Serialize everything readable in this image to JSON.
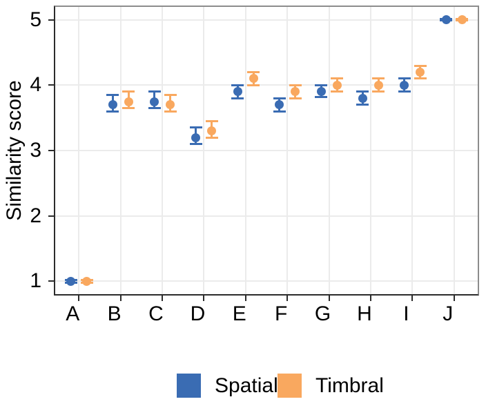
{
  "chart_data": {
    "type": "scatter",
    "title": "",
    "xlabel": "",
    "ylabel": "Similarity score",
    "categories": [
      "A",
      "B",
      "C",
      "D",
      "E",
      "F",
      "G",
      "H",
      "I",
      "J"
    ],
    "y_ticks": [
      "1",
      "2",
      "3",
      "4",
      "5"
    ],
    "ylim": [
      0.78,
      5.22
    ],
    "grid": "major-only",
    "legend_position": "bottom",
    "point_style": "dot-with-errorbar",
    "series": [
      {
        "name": "Spatial",
        "color": "#3A6CB3",
        "values": [
          1.0,
          3.7,
          3.75,
          3.2,
          3.9,
          3.7,
          3.9,
          3.8,
          4.0,
          5.0
        ],
        "lower": [
          0.98,
          3.6,
          3.65,
          3.1,
          3.8,
          3.6,
          3.82,
          3.7,
          3.9,
          4.99
        ],
        "upper": [
          1.02,
          3.85,
          3.9,
          3.35,
          4.0,
          3.8,
          4.0,
          3.9,
          4.1,
          5.01
        ]
      },
      {
        "name": "Timbral",
        "color": "#F9A85F",
        "values": [
          1.0,
          3.75,
          3.7,
          3.3,
          4.1,
          3.9,
          4.0,
          4.0,
          4.2,
          5.0
        ],
        "lower": [
          0.98,
          3.65,
          3.6,
          3.2,
          4.0,
          3.8,
          3.9,
          3.9,
          4.1,
          4.99
        ],
        "upper": [
          1.02,
          3.9,
          3.85,
          3.45,
          4.2,
          4.0,
          4.1,
          4.1,
          4.3,
          5.01
        ]
      }
    ]
  },
  "style": {
    "grid_color": "#EBEBEB",
    "panel_border_color": "#8C8C8C",
    "axis_color": "#2B2B2B",
    "text_color": "#000000",
    "background": "#FFFFFF"
  }
}
